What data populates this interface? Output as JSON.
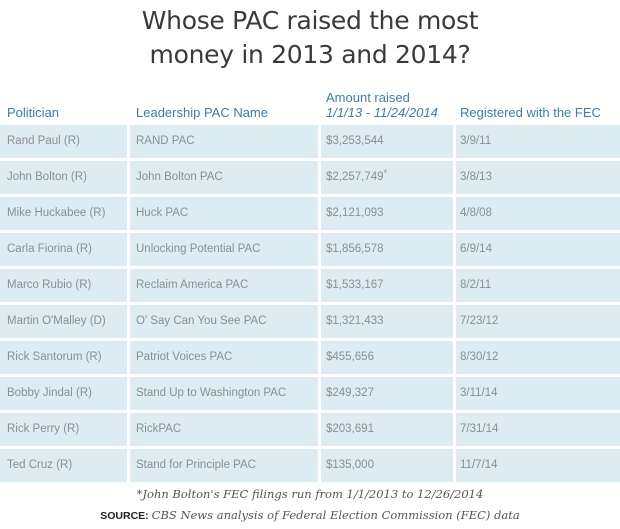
{
  "title": {
    "line1": "Whose PAC raised the most",
    "line2": "money in 2013 and 2014?"
  },
  "headers": {
    "politician": "Politician",
    "pac_name": "Leadership PAC Name",
    "amount_line1": "Amount raised",
    "amount_line2": "1/1/13 - 11/24/2014",
    "registered": "Registered with the FEC"
  },
  "rows": [
    {
      "politician": "Rand Paul (R)",
      "pac": "RAND PAC",
      "amount": "$3,253,544",
      "note": "",
      "registered": "3/9/11"
    },
    {
      "politician": "John Bolton (R)",
      "pac": "John Bolton PAC",
      "amount": "$2,257,749",
      "note": "*",
      "registered": "3/8/13"
    },
    {
      "politician": "Mike Huckabee (R)",
      "pac": "Huck PAC",
      "amount": "$2,121,093",
      "note": "",
      "registered": "4/8/08"
    },
    {
      "politician": "Carla Fiorina (R)",
      "pac": "Unlocking Potential PAC",
      "amount": "$1,856,578",
      "note": "",
      "registered": "6/9/14"
    },
    {
      "politician": "Marco Rubio (R)",
      "pac": "Reclaim America PAC",
      "amount": "$1,533,167",
      "note": "",
      "registered": "8/2/11"
    },
    {
      "politician": "Martin O'Malley (D)",
      "pac": "O' Say Can You See PAC",
      "amount": "$1,321,433",
      "note": "",
      "registered": "7/23/12"
    },
    {
      "politician": "Rick Santorum (R)",
      "pac": "Patriot Voices PAC",
      "amount": "$455,656",
      "note": "",
      "registered": "8/30/12"
    },
    {
      "politician": "Bobby Jindal (R)",
      "pac": "Stand Up to Washington PAC",
      "amount": "$249,327",
      "note": "",
      "registered": "3/11/14"
    },
    {
      "politician": "Rick Perry (R)",
      "pac": "RickPAC",
      "amount": "$203,691",
      "note": "",
      "registered": "7/31/14"
    },
    {
      "politician": "Ted Cruz (R)",
      "pac": "Stand for Principle PAC",
      "amount": "$135,000",
      "note": "",
      "registered": "11/7/14"
    }
  ],
  "footnote": "*John Bolton's FEC filings run from 1/1/2013 to 12/26/2014",
  "source": {
    "label": "SOURCE:",
    "text": "CBS News analysis of Federal Election Commission (FEC) data"
  },
  "colors": {
    "header_text": "#3f7ea0",
    "row_bg": "#ddecf2",
    "cell_text": "#8a8f94"
  }
}
